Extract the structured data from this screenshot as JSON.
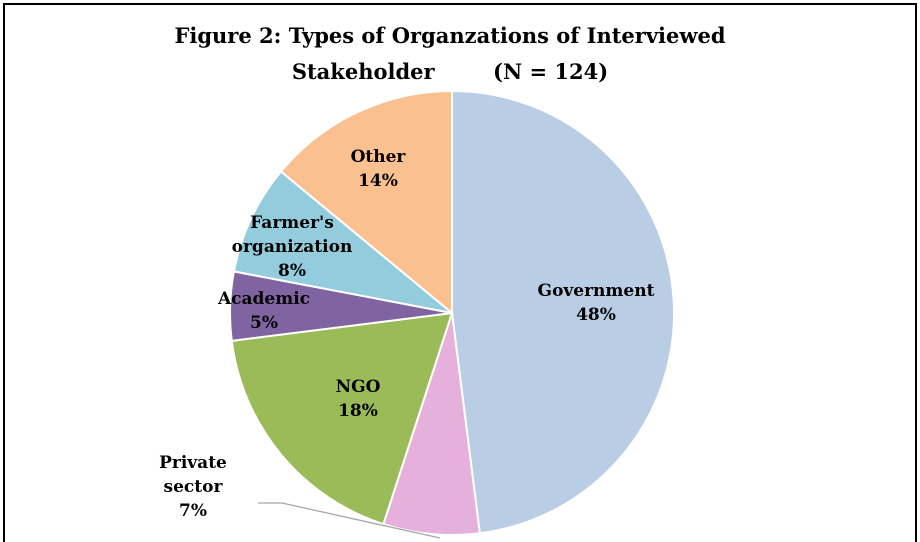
{
  "chart_data": {
    "type": "pie",
    "title": [
      "Figure 2: Types of Organzations of Interviewed",
      "Stakeholder        (N = 124)"
    ],
    "categories": [
      "Government",
      "Private sector",
      "NGO",
      "Academic",
      "Farmer's organization",
      "Other"
    ],
    "values": [
      48,
      7,
      18,
      5,
      8,
      14
    ],
    "value_labels": [
      "48%",
      "7%",
      "18%",
      "5%",
      "8%",
      "14%"
    ],
    "colors": [
      "#b9cde5",
      "#e6b0dc",
      "#9bbb59",
      "#8064a2",
      "#93cddd",
      "#fac090"
    ]
  }
}
